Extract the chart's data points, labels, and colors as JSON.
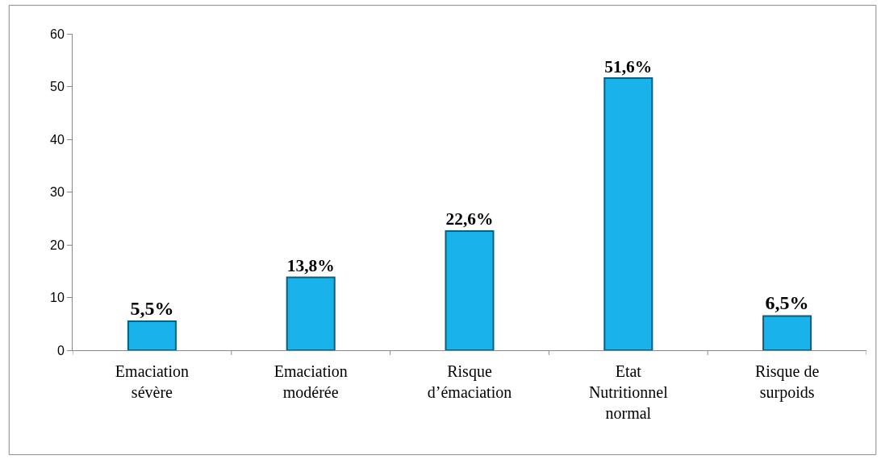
{
  "chart_data": {
    "type": "bar",
    "categories": [
      "Emaciation sévère",
      "Emaciation modérée",
      "Risque d’émaciation",
      "Etat Nutritionnel normal",
      "Risque de surpoids"
    ],
    "values": [
      5.5,
      13.8,
      22.6,
      51.6,
      6.5
    ],
    "value_labels": [
      "5,5%",
      "13,8%",
      "22,6%",
      "51,6%",
      "6,5%"
    ],
    "color": "#1ab2ea",
    "ylim": [
      0,
      60
    ],
    "yticks": [
      0,
      10,
      20,
      30,
      40,
      50,
      60
    ]
  }
}
